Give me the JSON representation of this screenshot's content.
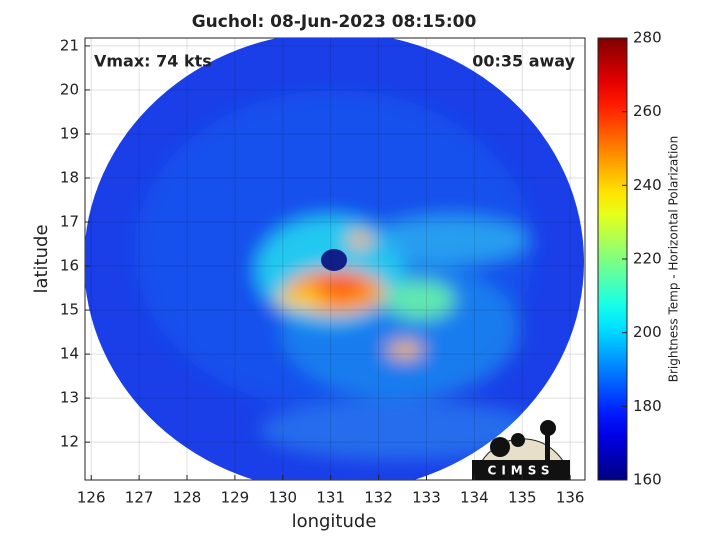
{
  "chart_data": {
    "type": "image",
    "title": "Guchol: 08-Jun-2023 08:15:00",
    "xlabel": "longitude",
    "ylabel": "latitude",
    "annotations": [
      "Vmax: 74 kts",
      "00:35 away"
    ],
    "logo_text": "CIMSS",
    "xlim": [
      125.87,
      136.31
    ],
    "xticks": [
      126,
      127,
      128,
      129,
      130,
      131,
      132,
      133,
      134,
      135,
      136
    ],
    "ylim": [
      11.14,
      21.18
    ],
    "yticks": [
      12,
      13,
      14,
      15,
      16,
      17,
      18,
      19,
      20,
      21
    ],
    "grid": true,
    "colorbar": {
      "label": "Brightness Temp - Horizontal Polarization",
      "colormap": "jet",
      "lim": [
        160,
        280
      ],
      "ticks": [
        160,
        180,
        200,
        220,
        240,
        260,
        280
      ]
    }
  }
}
